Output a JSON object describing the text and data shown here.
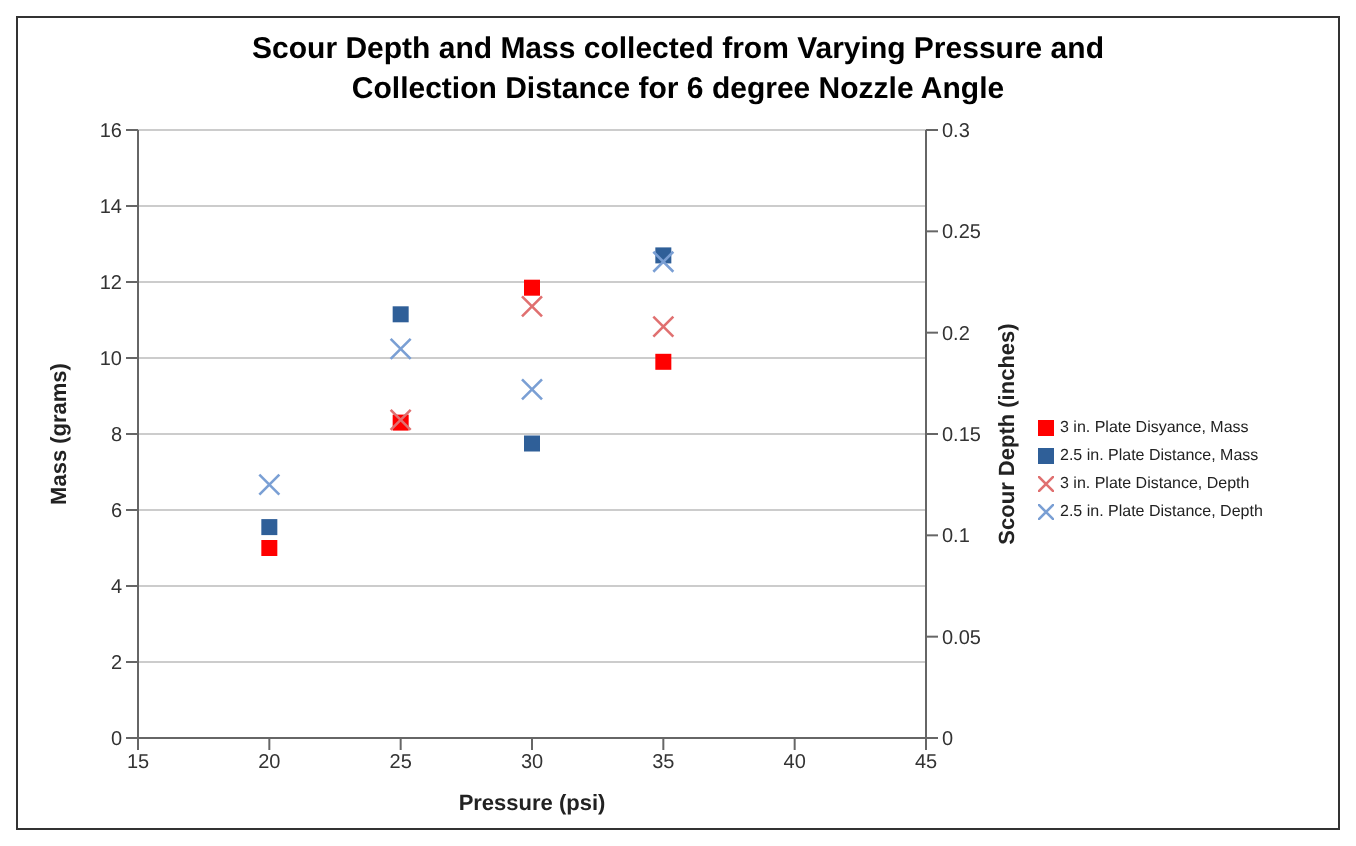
{
  "chart_data": {
    "type": "scatter",
    "title": "Scour Depth and Mass collected from Varying Pressure and Collection Distance for 6 degree Nozzle Angle",
    "xlabel": "Pressure (psi)",
    "ylabel": "Mass (grams)",
    "y2label": "Scour Depth (inches)",
    "x": [
      20,
      25,
      30,
      35
    ],
    "series": [
      {
        "name": "3 in. Plate Disyance, Mass",
        "color": "#ff0000",
        "marker": "square",
        "values": [
          5.0,
          8.3,
          11.85,
          9.9
        ]
      },
      {
        "name": "2.5 in. Plate Distance, Mass",
        "color": "#2f5f98",
        "marker": "square",
        "values": [
          5.55,
          11.15,
          7.75,
          12.7
        ]
      },
      {
        "name": "3 in. Plate Distance, Depth",
        "color": "#e07070",
        "marker": "cross",
        "axis": "y2",
        "values": [
          null,
          0.157,
          0.213,
          0.203
        ]
      },
      {
        "name": "2.5 in. Plate Distance, Depth",
        "color": "#7a9fd4",
        "marker": "cross",
        "axis": "y2",
        "values": [
          0.125,
          0.192,
          0.172,
          0.235
        ]
      }
    ],
    "xlim": [
      15,
      45
    ],
    "xticks": [
      15,
      20,
      25,
      30,
      35,
      40,
      45
    ],
    "ylim": [
      0,
      16
    ],
    "yticks": [
      0,
      2,
      4,
      6,
      8,
      10,
      12,
      14,
      16
    ],
    "y2lim": [
      0,
      0.3
    ],
    "y2ticks": [
      0,
      0.05,
      0.1,
      0.15,
      0.2,
      0.25,
      0.3
    ],
    "grid": "y",
    "legend": "right"
  }
}
